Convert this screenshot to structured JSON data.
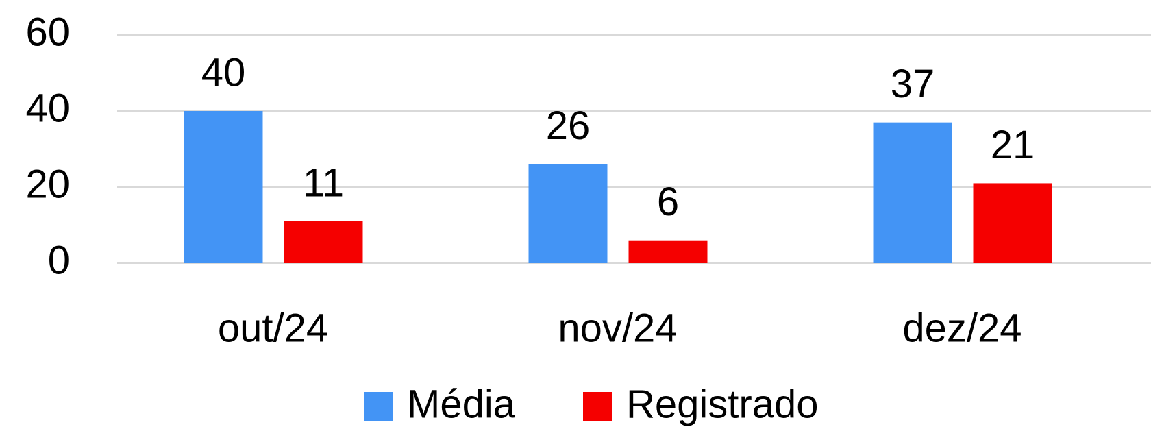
{
  "chart_data": {
    "type": "bar",
    "categories": [
      "out/24",
      "nov/24",
      "dez/24"
    ],
    "series": [
      {
        "name": "Média",
        "color": "#4394f5",
        "values": [
          40,
          26,
          37
        ]
      },
      {
        "name": "Registrado",
        "color": "#f50000",
        "values": [
          11,
          6,
          21
        ]
      }
    ],
    "ylim": [
      0,
      60
    ],
    "yticks": [
      0,
      20,
      40,
      60
    ],
    "grid": true,
    "legend": "bottom"
  }
}
